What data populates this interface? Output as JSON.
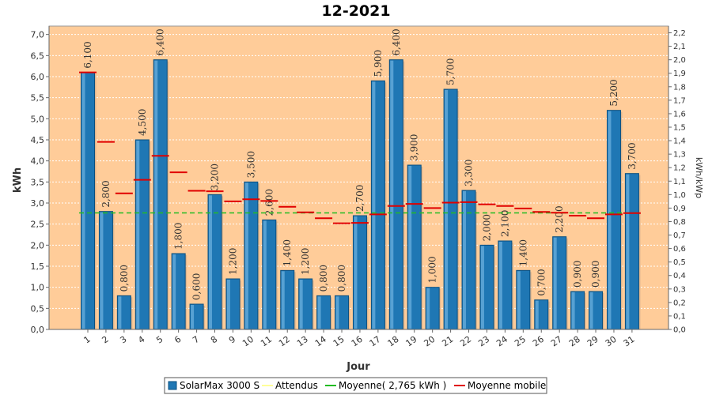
{
  "chart_data": {
    "type": "bar",
    "title": "12-2021",
    "xlabel": "Jour",
    "ylabel": "kWh",
    "y2label": "kWh/kWp",
    "ylim": [
      0,
      7.2
    ],
    "y2lim": [
      0,
      2.25
    ],
    "yticks": [
      "0,0",
      "0,5",
      "1,0",
      "1,5",
      "2,0",
      "2,5",
      "3,0",
      "3,5",
      "4,0",
      "4,5",
      "5,0",
      "5,5",
      "6,0",
      "6,5",
      "7,0"
    ],
    "y2ticks": [
      "0,0",
      "0,1",
      "0,2",
      "0,3",
      "0,4",
      "0,5",
      "0,6",
      "0,7",
      "0,8",
      "0,9",
      "1,0",
      "1,1",
      "1,2",
      "1,3",
      "1,4",
      "1,5",
      "1,6",
      "1,7",
      "1,8",
      "1,9",
      "2,0",
      "2,1",
      "2,2"
    ],
    "categories": [
      "1",
      "2",
      "3",
      "4",
      "5",
      "6",
      "7",
      "8",
      "9",
      "10",
      "11",
      "12",
      "13",
      "14",
      "15",
      "16",
      "17",
      "18",
      "19",
      "20",
      "21",
      "22",
      "23",
      "24",
      "25",
      "26",
      "27",
      "28",
      "29",
      "30",
      "31"
    ],
    "series": [
      {
        "name": "SolarMax 3000 S",
        "color": "#1f77b4",
        "values": [
          6.1,
          2.8,
          0.8,
          4.5,
          6.4,
          1.8,
          0.6,
          3.2,
          1.2,
          3.5,
          2.6,
          1.4,
          1.2,
          0.8,
          0.8,
          2.7,
          5.9,
          6.4,
          3.9,
          1.0,
          5.7,
          3.3,
          2.0,
          2.1,
          1.4,
          0.7,
          2.2,
          0.9,
          0.9,
          5.2,
          3.7
        ],
        "labels": [
          "6,100",
          "2,800",
          "0,800",
          "4,500",
          "6,400",
          "1,800",
          "0,600",
          "3,200",
          "1,200",
          "3,500",
          "2,600",
          "1,400",
          "1,200",
          "0,800",
          "0,800",
          "2,700",
          "5,900",
          "6,400",
          "3,900",
          "1,000",
          "5,700",
          "3,300",
          "2,000",
          "2,100",
          "1,400",
          "0,700",
          "2,200",
          "0,900",
          "0,900",
          "5,200",
          "3,700"
        ]
      },
      {
        "name": "Moyenne mobile",
        "color": "#e00000",
        "values": [
          6.1,
          4.45,
          3.23,
          3.55,
          4.12,
          3.73,
          3.29,
          3.28,
          3.04,
          3.09,
          3.05,
          2.91,
          2.78,
          2.64,
          2.52,
          2.53,
          2.73,
          2.93,
          2.98,
          2.88,
          3.01,
          3.02,
          2.97,
          2.93,
          2.87,
          2.79,
          2.77,
          2.7,
          2.64,
          2.73,
          2.76
        ]
      }
    ],
    "average": {
      "name": "Moyenne( 2,765 kWh )",
      "value": 2.765,
      "color": "#22bb22"
    },
    "expected": {
      "name": "Attendus",
      "color": "#ffff99"
    },
    "legend_position": "bottom",
    "plot_background": "#ffcc99",
    "grid": true
  }
}
